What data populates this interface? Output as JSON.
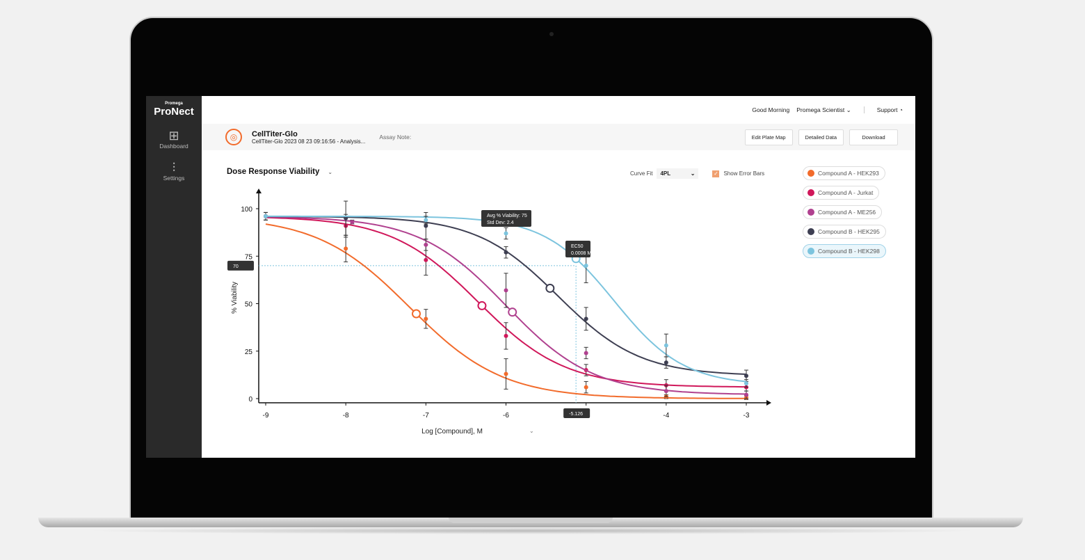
{
  "sidebar": {
    "brand_small": "Promega",
    "brand": "ProNect",
    "items": [
      {
        "label": "Dashboard",
        "icon": "grid-icon"
      },
      {
        "label": "Settings",
        "icon": "sliders-icon"
      }
    ]
  },
  "topbar": {
    "greeting": "Good Morning",
    "user": "Promega Scientist",
    "support": "Support"
  },
  "header": {
    "title": "CellTiter-Glo",
    "subtitle": "CellTiter-Glo 2023 08 23 09:16:56 - Analysis...",
    "assay_note": "Assay Note:",
    "buttons": [
      "Edit Plate Map",
      "Detailed Data",
      "Download"
    ]
  },
  "chart_controls": {
    "title": "Dose Response Viability",
    "curve_fit_label": "Curve Fit",
    "curve_fit_value": "4PL",
    "show_error_bars": "Show Error Bars",
    "error_bars_checked": true
  },
  "chart_data": {
    "type": "line",
    "xlabel": "Log [Compound], M",
    "ylabel": "% Viability",
    "xlim": [
      -9,
      -3
    ],
    "ylim": [
      0,
      100
    ],
    "xticks": [
      "-9",
      "-8",
      "-7",
      "-6",
      "-5",
      "-4",
      "-3"
    ],
    "yticks": [
      "0",
      "25",
      "50",
      "75",
      "100"
    ],
    "grid": false,
    "legend": "right",
    "crosshair": {
      "x": -5.126,
      "y": 70,
      "x_label": "-5.126",
      "y_label": "70"
    },
    "tooltip": {
      "line1": "Avg % Viability: 75",
      "line2": "Std Dev: 2.4",
      "x": -6
    },
    "ec50_tooltip": {
      "line1": "EC50",
      "line2": "0.0008 M"
    },
    "series": [
      {
        "name": "Compound A - HEK293",
        "color": "#f26b2b",
        "fit": {
          "top": 96,
          "bottom": 0,
          "logEC50": -7.2,
          "hill": 0.75
        },
        "marker_x": -7.12,
        "points": [
          [
            -9,
            96,
            2
          ],
          [
            -8,
            79,
            7
          ],
          [
            -7,
            42,
            5
          ],
          [
            -6,
            13,
            8
          ],
          [
            -5,
            6,
            3
          ],
          [
            -4,
            1,
            1
          ],
          [
            -3,
            0.5,
            1
          ]
        ]
      },
      {
        "name": "Compound A - Jurkat",
        "color": "#d0175a",
        "fit": {
          "top": 96,
          "bottom": 6,
          "logEC50": -6.35,
          "hill": 0.8
        },
        "marker_x": -6.3,
        "points": [
          [
            -9,
            96,
            2
          ],
          [
            -8,
            91,
            6
          ],
          [
            -7,
            73,
            8
          ],
          [
            -6,
            33,
            7
          ],
          [
            -5,
            15,
            3
          ],
          [
            -4,
            7,
            3
          ],
          [
            -3,
            6,
            2
          ]
        ]
      },
      {
        "name": "Compound A - ME256",
        "color": "#b0418f",
        "fit": {
          "top": 96,
          "bottom": 2,
          "logEC50": -6.0,
          "hill": 0.8
        },
        "marker_x": -5.92,
        "points": [
          [
            -9,
            96,
            2
          ],
          [
            -7.92,
            93,
            1
          ],
          [
            -7,
            81,
            3
          ],
          [
            -6,
            57,
            9
          ],
          [
            -5,
            24,
            3
          ],
          [
            -4,
            4,
            3
          ],
          [
            -3,
            2,
            2
          ]
        ]
      },
      {
        "name": "Compound B - HEK295",
        "color": "#3e3f52",
        "fit": {
          "top": 96,
          "bottom": 12,
          "logEC50": -5.35,
          "hill": 0.85
        },
        "marker_x": -5.45,
        "points": [
          [
            -9,
            96,
            2
          ],
          [
            -8,
            95,
            9
          ],
          [
            -7,
            91,
            7
          ],
          [
            -6,
            77,
            3
          ],
          [
            -5,
            42,
            6
          ],
          [
            -4,
            19,
            3
          ],
          [
            -3,
            12,
            3
          ]
        ]
      },
      {
        "name": "Compound B - HEK298",
        "color": "#7cc4de",
        "fit": {
          "top": 96,
          "bottom": 7,
          "logEC50": -4.65,
          "hill": 1.0
        },
        "marker_x": -5.126,
        "selected": true,
        "points": [
          [
            -9,
            96,
            2
          ],
          [
            -7,
            94,
            2
          ],
          [
            -6,
            87,
            3
          ],
          [
            -5,
            70,
            9
          ],
          [
            -4,
            28,
            6
          ],
          [
            -3,
            8,
            2
          ]
        ]
      }
    ]
  }
}
